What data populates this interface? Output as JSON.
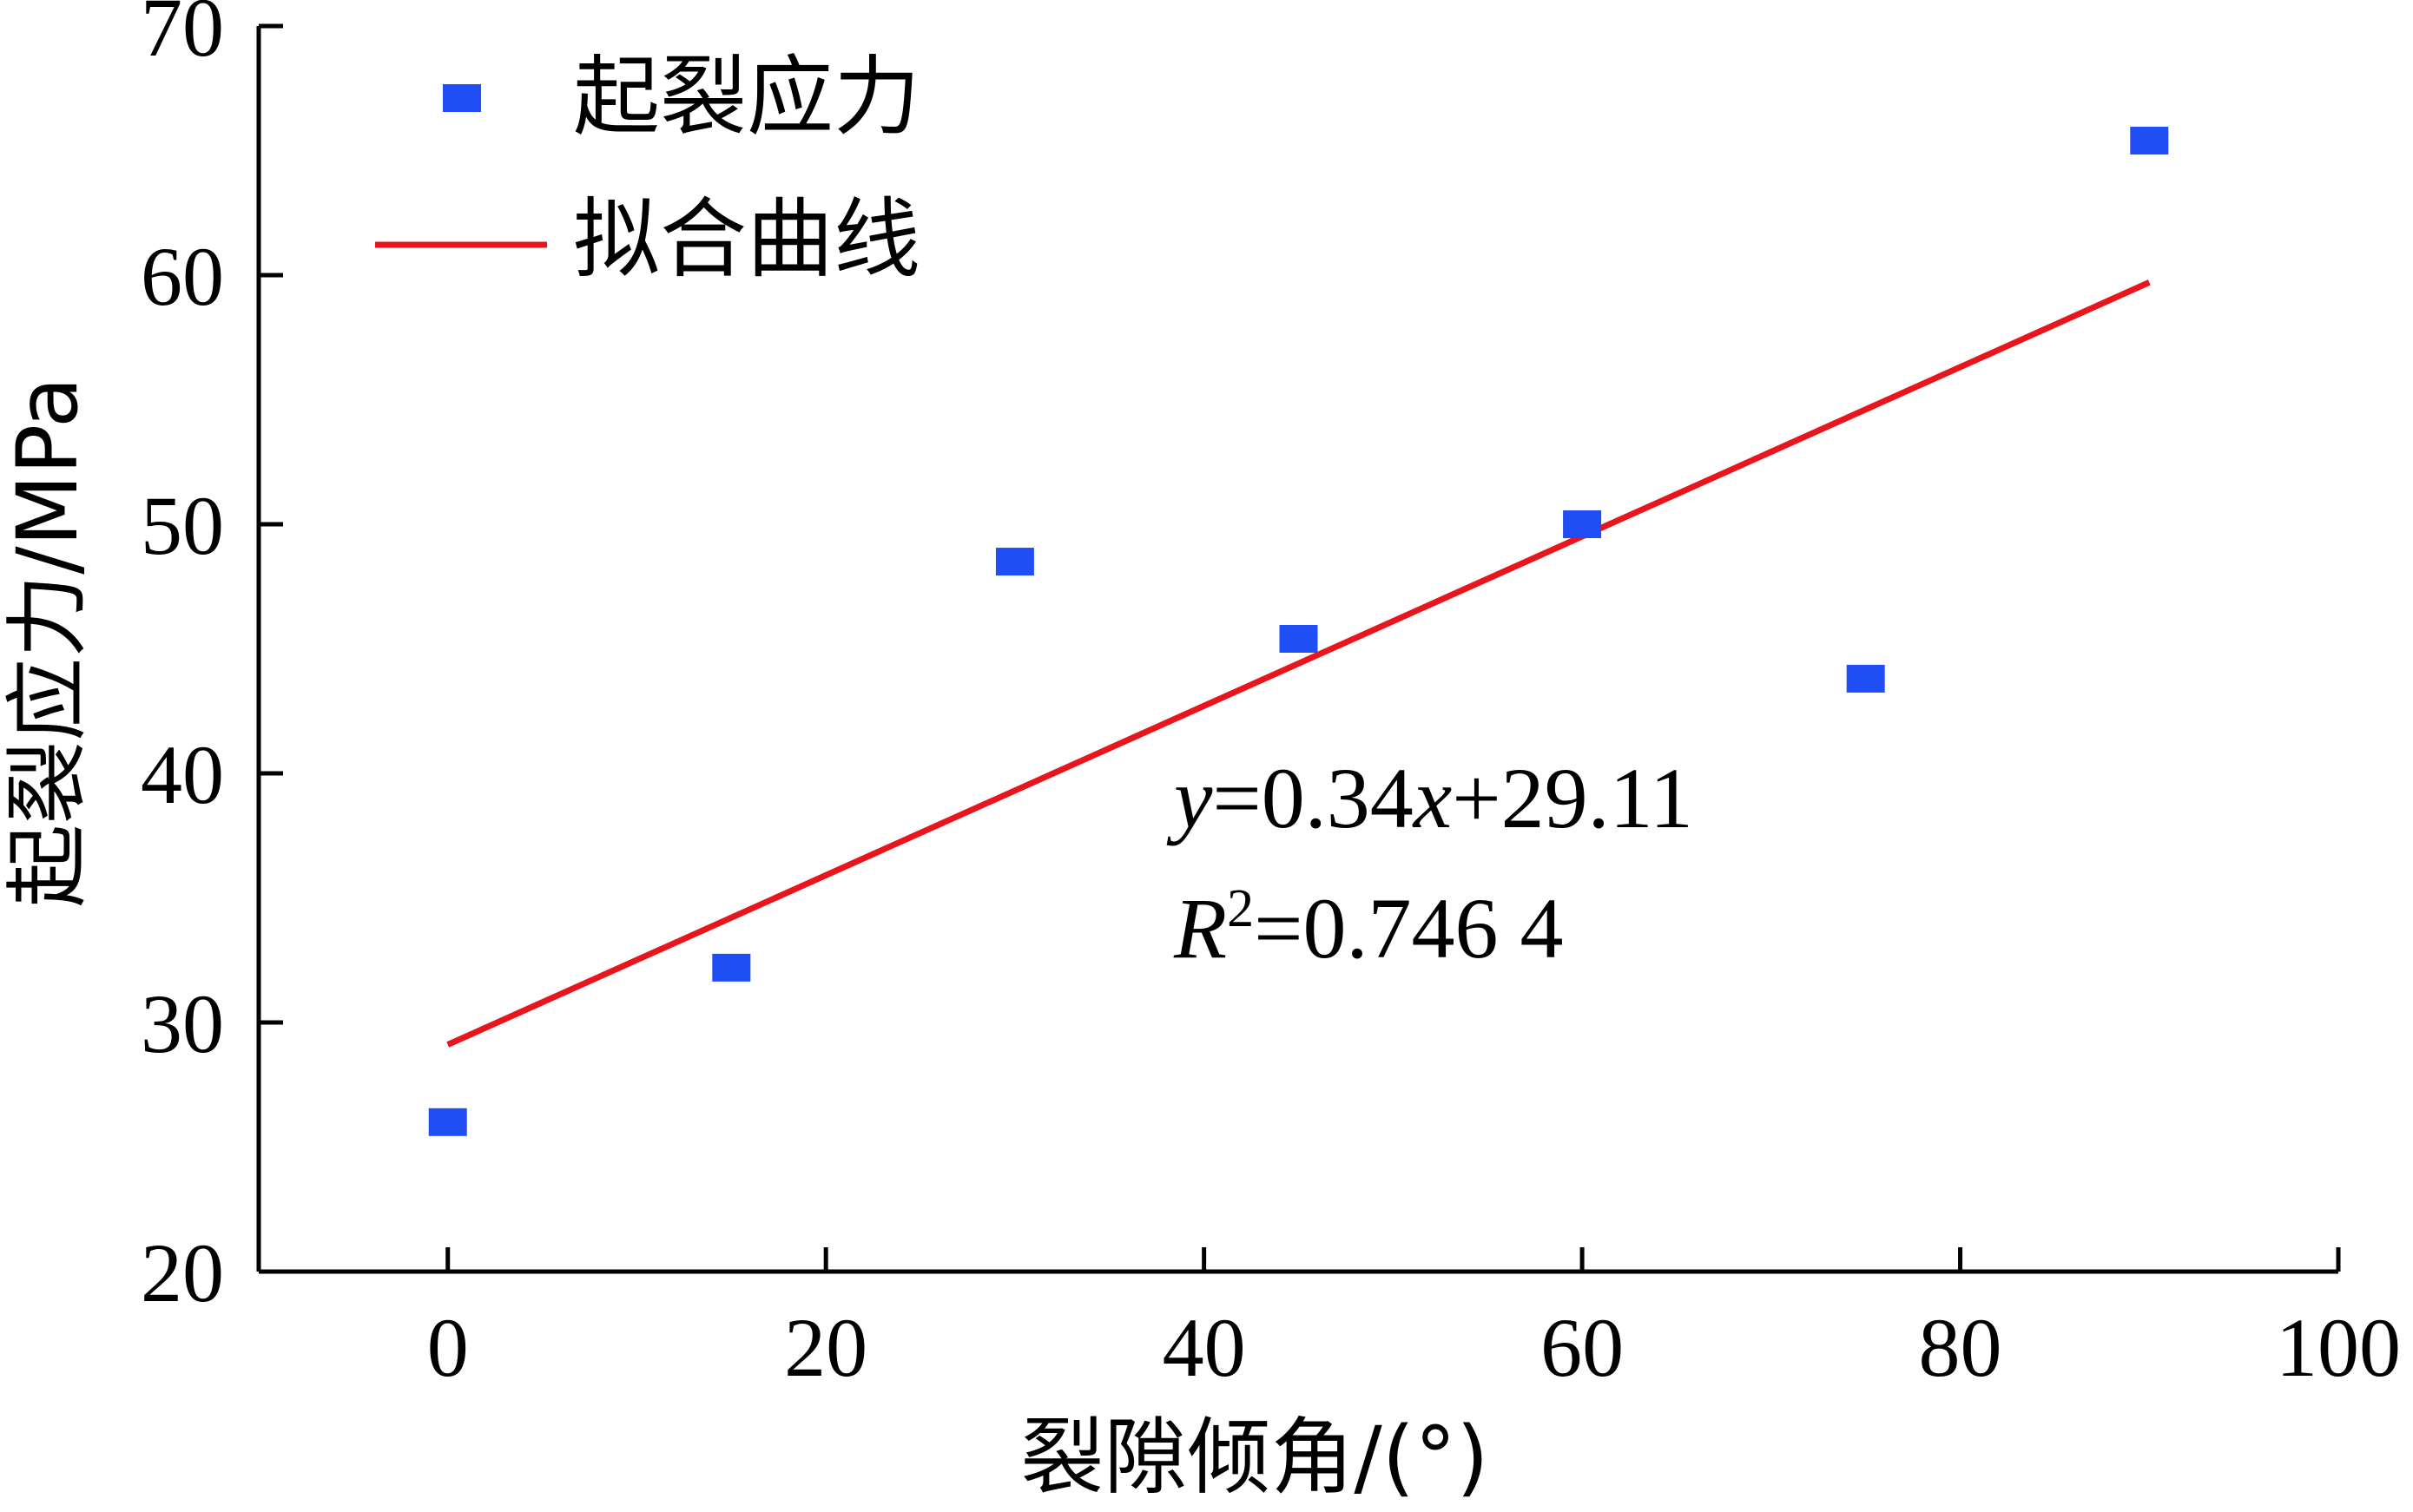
{
  "chart_data": {
    "type": "scatter",
    "xlabel": "裂隙倾角/(°)",
    "ylabel": "起裂应力/MPa",
    "xlim": [
      -10,
      100
    ],
    "ylim": [
      20,
      70
    ],
    "xticks": [
      "0",
      "20",
      "40",
      "60",
      "80",
      "100"
    ],
    "yticks": [
      "20",
      "30",
      "40",
      "50",
      "60",
      "70"
    ],
    "legend": {
      "position": "top-left",
      "scatter_label": "起裂应力",
      "line_label": "拟合曲线"
    },
    "series": [
      {
        "name": "起裂应力",
        "kind": "scatter",
        "color": "#1f4ef5",
        "x": [
          0,
          15,
          30,
          45,
          60,
          75,
          90
        ],
        "y": [
          26.0,
          32.2,
          48.5,
          45.4,
          50.0,
          43.8,
          65.4
        ]
      },
      {
        "name": "拟合曲线",
        "kind": "line",
        "color": "#e8161c",
        "x": [
          0,
          90
        ],
        "y": [
          29.11,
          59.71
        ]
      }
    ],
    "annotations": {
      "equation": {
        "y": "y",
        "eq1": "=0.34",
        "x": "x",
        "eq2": "+29.11"
      },
      "r2": {
        "r": "R",
        "sup": "2",
        "val": "=0.746 4"
      }
    }
  }
}
